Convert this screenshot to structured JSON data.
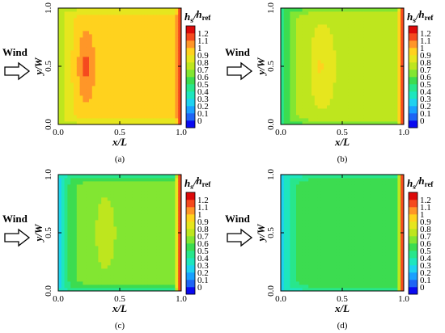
{
  "chart_data": [
    {
      "type": "heatmap",
      "caption": "(a)",
      "wind_label": "Wind",
      "xlabel": "x/L",
      "ylabel": "y/W",
      "xlim": [
        0.0,
        1.0
      ],
      "ylim": [
        0.0,
        1.0
      ],
      "x_ticks": [
        "0.0",
        "0.5",
        "1.0"
      ],
      "y_ticks": [
        "0.0",
        "0.5",
        "1.0"
      ],
      "colorbar": {
        "title_main": "h",
        "title_sub1": "s",
        "title_slash": "/",
        "title_main2": "h",
        "title_sub2": "ref",
        "ticks": [
          "1.2",
          "1.1",
          "1",
          "0.9",
          "0.8",
          "0.7",
          "0.6",
          "0.5",
          "0.4",
          "0.3",
          "0.2",
          "0.1",
          "0"
        ]
      },
      "field": {
        "base": 0.95,
        "peak": 1.15,
        "peak_x": 0.22,
        "peak_y": 0.5,
        "peak_sx": 0.07,
        "peak_sy": 0.3,
        "left_min": 0.7,
        "edge_min": 0.72,
        "right_max": 1.2
      }
    },
    {
      "type": "heatmap",
      "caption": "(b)",
      "wind_label": "Wind",
      "xlabel": "x/L",
      "ylabel": "y/W",
      "xlim": [
        0.0,
        1.0
      ],
      "ylim": [
        0.0,
        1.0
      ],
      "x_ticks": [
        "0.0",
        "0.5",
        "1.0"
      ],
      "y_ticks": [
        "0.0",
        "0.5",
        "1.0"
      ],
      "colorbar": {
        "title_main": "h",
        "title_sub1": "s",
        "title_slash": "/",
        "title_main2": "h",
        "title_sub2": "ref",
        "ticks": [
          "1.2",
          "1.1",
          "1",
          "0.9",
          "0.8",
          "0.7",
          "0.6",
          "0.5",
          "0.4",
          "0.3",
          "0.2",
          "0.1",
          "0"
        ]
      },
      "field": {
        "base": 0.8,
        "peak": 0.92,
        "peak_x": 0.32,
        "peak_y": 0.5,
        "peak_sx": 0.06,
        "peak_sy": 0.25,
        "left_min": 0.35,
        "edge_min": 0.5,
        "right_max": 1.2
      }
    },
    {
      "type": "heatmap",
      "caption": "(c)",
      "wind_label": "Wind",
      "xlabel": "x/L",
      "ylabel": "y/W",
      "xlim": [
        0.0,
        1.0
      ],
      "ylim": [
        0.0,
        1.0
      ],
      "x_ticks": [
        "0.0",
        "0.5",
        "1.0"
      ],
      "y_ticks": [
        "0.0",
        "0.5",
        "1.0"
      ],
      "colorbar": {
        "title_main": "h",
        "title_sub1": "s",
        "title_slash": "/",
        "title_main2": "h",
        "title_sub2": "ref",
        "ticks": [
          "1.2",
          "1.1",
          "1",
          "0.9",
          "0.8",
          "0.7",
          "0.6",
          "0.5",
          "0.4",
          "0.3",
          "0.2",
          "0.1",
          "0"
        ]
      },
      "field": {
        "base": 0.68,
        "peak": 0.77,
        "peak_x": 0.38,
        "peak_y": 0.5,
        "peak_sx": 0.07,
        "peak_sy": 0.27,
        "left_min": 0.2,
        "edge_min": 0.35,
        "right_max": 1.15
      }
    },
    {
      "type": "heatmap",
      "caption": "(d)",
      "wind_label": "Wind",
      "xlabel": "x/L",
      "ylabel": "y/W",
      "xlim": [
        0.0,
        1.0
      ],
      "ylim": [
        0.0,
        1.0
      ],
      "x_ticks": [
        "0.0",
        "0.5",
        "1.0"
      ],
      "y_ticks": [
        "0.0",
        "0.5",
        "1.0"
      ],
      "colorbar": {
        "title_main": "h",
        "title_sub1": "s",
        "title_slash": "/",
        "title_main2": "h",
        "title_sub2": "ref",
        "ticks": [
          "1.2",
          "1.1",
          "1",
          "0.9",
          "0.8",
          "0.7",
          "0.6",
          "0.5",
          "0.4",
          "0.3",
          "0.2",
          "0.1",
          "0"
        ]
      },
      "field": {
        "base": 0.6,
        "peak": 0.6,
        "peak_x": 0.4,
        "peak_y": 0.5,
        "peak_sx": 0.07,
        "peak_sy": 0.27,
        "left_min": 0.15,
        "edge_min": 0.3,
        "right_max": 1.1
      }
    }
  ],
  "palette": [
    "#0a0af0",
    "#1e64f5",
    "#19a0ff",
    "#1ed2f0",
    "#1ee6be",
    "#28e68c",
    "#3cdc50",
    "#82e632",
    "#bee61e",
    "#e6e61e",
    "#ffd21e",
    "#ff9628",
    "#f54a1e",
    "#dc0a0a"
  ]
}
